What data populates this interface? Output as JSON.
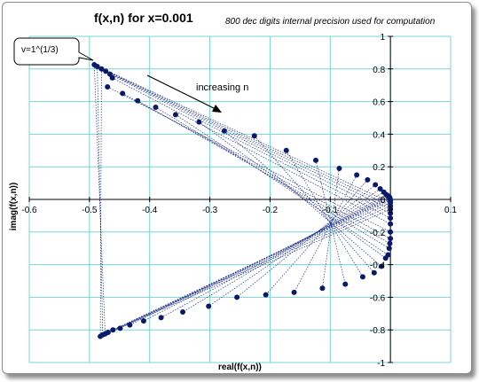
{
  "chart_data": {
    "type": "scatter",
    "title": "f(x,n) for x=0.001",
    "subtitle": "800 dec digits internal precision used for computation",
    "xlabel": "real(f(x,n))",
    "ylabel": "imag(f(x,n))",
    "xlim": [
      -0.6,
      0.1
    ],
    "ylim": [
      -1,
      1
    ],
    "x_ticks": [
      "-0.6",
      "-0.5",
      "-0.4",
      "-0.3",
      "-0.2",
      "-0.1",
      "0",
      "0.1"
    ],
    "x_tick_values": [
      -0.6,
      -0.5,
      -0.4,
      -0.3,
      -0.2,
      -0.1,
      0,
      0.1
    ],
    "y_ticks": [
      "1",
      "0.8",
      "0.6",
      "0.4",
      "0.2",
      "0",
      "-0.2",
      "-0.4",
      "-0.6",
      "-0.8",
      "-1"
    ],
    "y_tick_values": [
      1,
      0.8,
      0.6,
      0.4,
      0.2,
      0,
      -0.2,
      -0.4,
      -0.6,
      -0.8,
      -1
    ],
    "grid": true,
    "marker_color": "#0a1a6b",
    "line_color": "#1f2f8a",
    "grid_color": "#79d3d3",
    "annotations": {
      "increasing": "increasing n",
      "callout": "v=1^(1/3)"
    },
    "series": [
      {
        "x": [
          -0.492,
          -0.487,
          -0.48,
          -0.473,
          -0.466,
          -0.462,
          -0.47,
          -0.445,
          -0.42,
          -0.39,
          -0.357,
          -0.318,
          -0.276,
          -0.226,
          -0.173,
          -0.124,
          -0.085,
          -0.056,
          -0.038,
          -0.025,
          -0.017,
          -0.011,
          -0.007,
          -0.004,
          -0.002,
          -0.001,
          -0.0005,
          0,
          0,
          0,
          0,
          0,
          0,
          0,
          0,
          0,
          -0.001,
          -0.002,
          -0.004,
          -0.008,
          -0.015,
          -0.027,
          -0.046,
          -0.075,
          -0.113,
          -0.16,
          -0.207,
          -0.255,
          -0.302,
          -0.345,
          -0.381,
          -0.41,
          -0.433,
          -0.449,
          -0.461,
          -0.469,
          -0.474,
          -0.478,
          -0.482
        ],
        "y": [
          0.826,
          0.815,
          0.8,
          0.786,
          0.768,
          0.745,
          0.69,
          0.65,
          0.605,
          0.565,
          0.52,
          0.475,
          0.42,
          0.39,
          0.3,
          0.24,
          0.19,
          0.15,
          0.12,
          0.09,
          0.065,
          0.045,
          0.03,
          0.022,
          0.016,
          0.01,
          0.003,
          -0.005,
          -0.02,
          -0.04,
          -0.06,
          -0.085,
          -0.115,
          -0.15,
          -0.2,
          -0.24,
          -0.27,
          -0.3,
          -0.34,
          -0.36,
          -0.41,
          -0.45,
          -0.475,
          -0.52,
          -0.545,
          -0.57,
          -0.585,
          -0.6,
          -0.655,
          -0.69,
          -0.725,
          -0.745,
          -0.77,
          -0.79,
          -0.8,
          -0.815,
          -0.825,
          -0.83,
          -0.84
        ]
      }
    ]
  }
}
